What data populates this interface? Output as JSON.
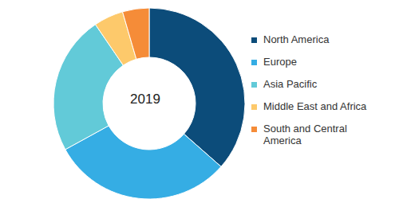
{
  "chart_data": {
    "type": "pie",
    "title": "2019",
    "categories": [
      "North America",
      "Europe",
      "Asia Pacific",
      "Middle East and Africa",
      "South and Central America"
    ],
    "values": [
      36.5,
      30.5,
      23.5,
      5,
      4.5
    ],
    "colors": [
      "#0c4c7a",
      "#35ade4",
      "#62cad8",
      "#fdc96b",
      "#f58c38"
    ],
    "legend": "right"
  }
}
